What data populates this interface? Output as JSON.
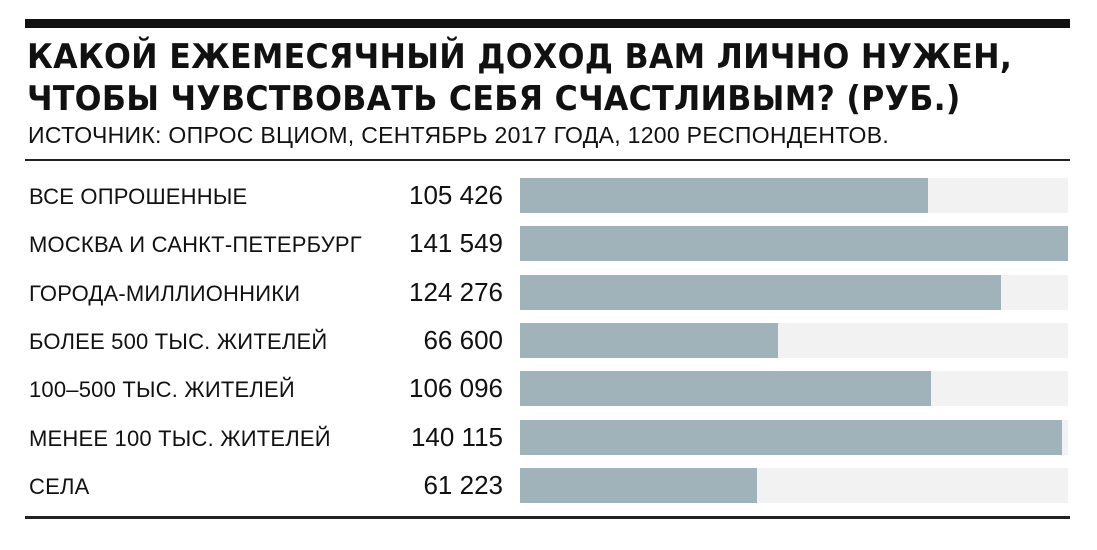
{
  "chart_data": {
    "type": "bar",
    "orientation": "horizontal",
    "title_line1": "КАКОЙ ЕЖЕМЕСЯЧНЫЙ ДОХОД ВАМ ЛИЧНО НУЖЕН,",
    "title_line2": "ЧТОБЫ ЧУВСТВОВАТЬ СЕБЯ СЧАСТЛИВЫМ? (РУБ.)",
    "subtitle": "ИСТОЧНИК: ОПРОС ВЦИОМ, СЕНТЯБРЬ 2017 ГОДА, 1200 РЕСПОНДЕНТОВ.",
    "categories": [
      "ВСЕ ОПРОШЕННЫЕ",
      "МОСКВА И САНКТ-ПЕТЕРБУРГ",
      "ГОРОДА-МИЛЛИОННИКИ",
      "БОЛЕЕ 500 ТЫС. ЖИТЕЛЕЙ",
      "100–500 ТЫС. ЖИТЕЛЕЙ",
      "МЕНЕЕ 100 ТЫС. ЖИТЕЛЕЙ",
      "СЕЛА"
    ],
    "values": [
      105426,
      141549,
      124276,
      66600,
      106096,
      140115,
      61223
    ],
    "value_labels": [
      "105 426",
      "141 549",
      "124 276",
      "66 600",
      "106 096",
      "140 115",
      "61 223"
    ],
    "xlim": [
      0,
      141549
    ],
    "bar_color": "#a0b2ba",
    "track_color": "#f2f2f2"
  }
}
